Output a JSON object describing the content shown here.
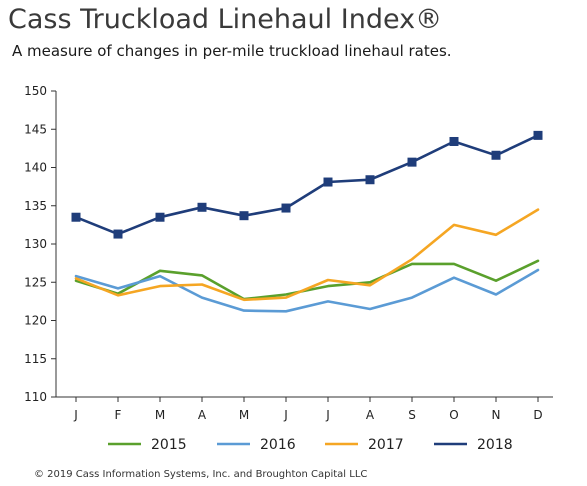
{
  "header": {
    "title": "Cass Truckload Linehaul Index®",
    "subtitle": "A measure of changes in per-mile truckload linehaul rates."
  },
  "footer": {
    "copyright": "© 2019 Cass Information Systems, Inc. and Broughton Capital LLC"
  },
  "chart_data": {
    "type": "line",
    "title": "Cass Truckload Linehaul Index®",
    "subtitle": "A measure of changes in per-mile truckload linehaul rates.",
    "xlabel": "",
    "ylabel": "",
    "categories": [
      "J",
      "F",
      "M",
      "A",
      "M",
      "J",
      "J",
      "A",
      "S",
      "O",
      "N",
      "D"
    ],
    "ylim": [
      110,
      150
    ],
    "yticks": [
      110,
      115,
      120,
      125,
      130,
      135,
      140,
      145,
      150
    ],
    "grid": false,
    "legend": "bottom",
    "series": [
      {
        "name": "2015",
        "color": "#5aa02c",
        "marker": "none",
        "values": [
          125.2,
          123.5,
          126.5,
          125.9,
          122.8,
          123.4,
          124.5,
          125.0,
          127.4,
          127.4,
          125.2,
          127.8
        ]
      },
      {
        "name": "2016",
        "color": "#5b9bd5",
        "marker": "none",
        "values": [
          125.8,
          124.2,
          125.8,
          123.0,
          121.3,
          121.2,
          122.5,
          121.5,
          123.0,
          125.6,
          123.4,
          126.6
        ]
      },
      {
        "name": "2017",
        "color": "#f5a623",
        "marker": "none",
        "values": [
          125.5,
          123.3,
          124.5,
          124.7,
          122.7,
          123.0,
          125.3,
          124.6,
          128.0,
          132.5,
          131.2,
          134.5
        ]
      },
      {
        "name": "2018",
        "color": "#1f3d7a",
        "marker": "square",
        "values": [
          133.5,
          131.3,
          133.5,
          134.8,
          133.7,
          134.7,
          138.1,
          138.4,
          140.7,
          143.4,
          141.6,
          144.2
        ]
      }
    ]
  }
}
